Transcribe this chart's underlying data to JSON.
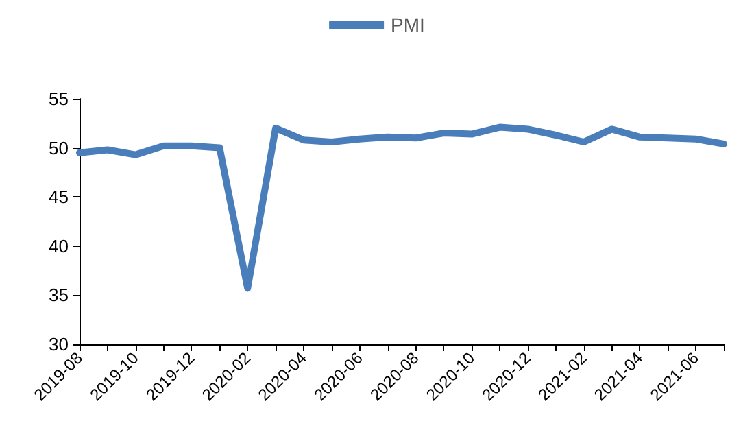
{
  "chart_data": {
    "type": "line",
    "categories": [
      "2019-08",
      null,
      "2019-10",
      null,
      "2019-12",
      null,
      "2020-02",
      null,
      "2020-04",
      null,
      "2020-06",
      null,
      "2020-08",
      null,
      "2020-10",
      null,
      "2020-12",
      null,
      "2021-02",
      null,
      "2021-04",
      null,
      "2021-06",
      null
    ],
    "series": [
      {
        "name": "PMI",
        "color": "#4a7ebb",
        "values": [
          49.5,
          49.8,
          49.3,
          50.2,
          50.2,
          50.0,
          35.7,
          52.0,
          50.8,
          50.6,
          50.9,
          51.1,
          51.0,
          51.5,
          51.4,
          52.1,
          51.9,
          51.3,
          50.6,
          51.9,
          51.1,
          51.0,
          50.9,
          50.4
        ]
      }
    ],
    "ylim": [
      30,
      55
    ],
    "yticks": [
      30,
      35,
      40,
      45,
      50,
      55
    ],
    "grid": false,
    "legend": "top",
    "marker": "none",
    "line_style": "solid"
  }
}
